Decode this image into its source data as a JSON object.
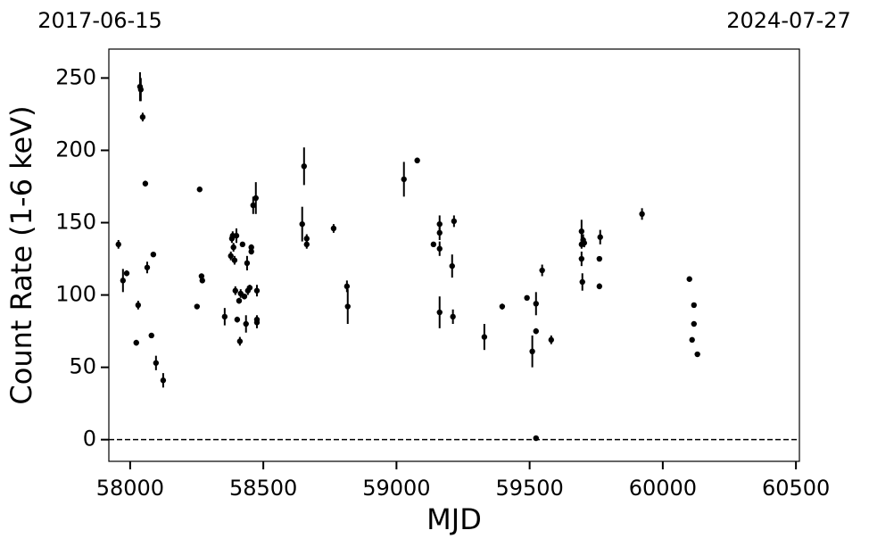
{
  "chart_data": {
    "type": "scatter",
    "xlabel": "MJD",
    "ylabel": "Count Rate (1-6 keV)",
    "date_labels": [
      "2017-06-15",
      "2024-07-27"
    ],
    "xlim": [
      57920,
      60513
    ],
    "ylim": [
      -15,
      270
    ],
    "xticks": [
      58000,
      58500,
      59000,
      59500,
      60000,
      60500
    ],
    "yticks": [
      0,
      50,
      100,
      150,
      200,
      250
    ],
    "hline": 0,
    "grid": false,
    "series": [
      {
        "color": "#000000",
        "x": [
          57956,
          57973,
          57987,
          58023,
          58030,
          58037,
          58040,
          58047,
          58057,
          58064,
          58080,
          58087,
          58097,
          58124,
          58251,
          58261,
          58268,
          58271,
          58355,
          58378,
          58382,
          58385,
          58388,
          58392,
          58395,
          58399,
          58402,
          58409,
          58412,
          58415,
          58422,
          58429,
          58435,
          58439,
          58442,
          58449,
          58455,
          58455,
          58462,
          58472,
          58476,
          58476,
          58476,
          58646,
          58653,
          58663,
          58663,
          58764,
          58814,
          58817,
          59028,
          59078,
          59139,
          59162,
          59162,
          59162,
          59162,
          59209,
          59212,
          59216,
          59330,
          59397,
          59490,
          59510,
          59524,
          59524,
          59524,
          59547,
          59581,
          59695,
          59695,
          59695,
          59698,
          59701,
          59705,
          59762,
          59762,
          59765,
          59922,
          60100,
          60110,
          60117,
          60117,
          60130
        ],
        "values": [
          135,
          110,
          115,
          67,
          93,
          244,
          242,
          223,
          177,
          119,
          72,
          128,
          53,
          41,
          92,
          173,
          113,
          110,
          85,
          127,
          139,
          141,
          133,
          124,
          103,
          141,
          83,
          96,
          68,
          101,
          135,
          99,
          80,
          122,
          103,
          105,
          133,
          130,
          162,
          167,
          103,
          81,
          83,
          149,
          189,
          139,
          135,
          146,
          106,
          92,
          180,
          193,
          135,
          88,
          149,
          143,
          132,
          120,
          85,
          151,
          71,
          92,
          98,
          61,
          1,
          75,
          94,
          117,
          69,
          144,
          135,
          125,
          109,
          138,
          136,
          106,
          125,
          140,
          156,
          111,
          69,
          93,
          80,
          59
        ],
        "errors": [
          3,
          8,
          2,
          2,
          3,
          10,
          8,
          3,
          2,
          4,
          1,
          1,
          5,
          5,
          1,
          1,
          1,
          1,
          6,
          3,
          3,
          3,
          3,
          3,
          3,
          5,
          2,
          2,
          3,
          3,
          1,
          2,
          6,
          5,
          3,
          2,
          2,
          2,
          6,
          11,
          4,
          4,
          3,
          12,
          13,
          3,
          3,
          3,
          4,
          12,
          12,
          2,
          1,
          11,
          6,
          5,
          5,
          8,
          5,
          4,
          9,
          2,
          1,
          11,
          1,
          2,
          8,
          4,
          3,
          8,
          3,
          5,
          6,
          4,
          3,
          2,
          1,
          5,
          4,
          1,
          1,
          1,
          1,
          1
        ]
      }
    ]
  }
}
